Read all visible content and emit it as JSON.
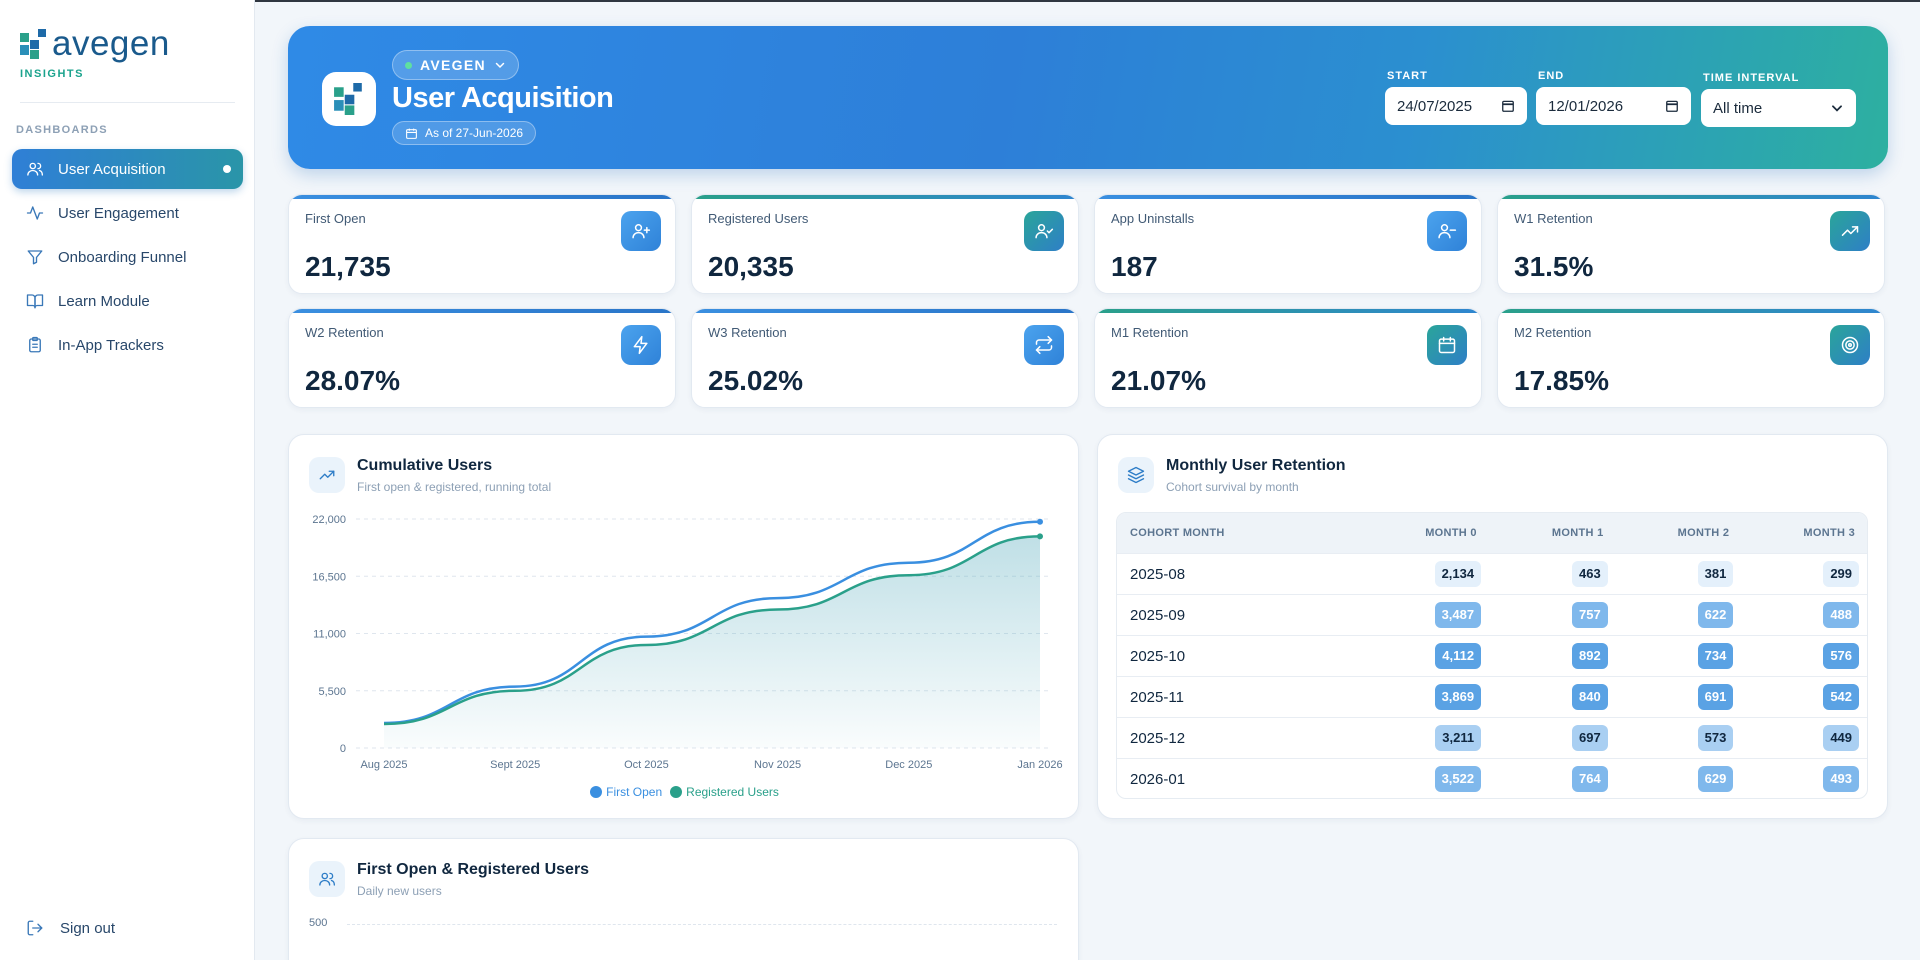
{
  "brand": {
    "name": "avegen",
    "sub": "INSIGHTS"
  },
  "sidebar": {
    "section": "DASHBOARDS",
    "items": [
      {
        "label": "User Acquisition",
        "icon": "users-icon",
        "active": true
      },
      {
        "label": "User Engagement",
        "icon": "activity-icon",
        "active": false
      },
      {
        "label": "Onboarding Funnel",
        "icon": "funnel-icon",
        "active": false
      },
      {
        "label": "Learn Module",
        "icon": "book-icon",
        "active": false
      },
      {
        "label": "In-App Trackers",
        "icon": "clipboard-icon",
        "active": false
      }
    ],
    "signout": "Sign out"
  },
  "header": {
    "org": "AVEGEN",
    "title": "User Acquisition",
    "as_of": "As of 27-Jun-2026",
    "start_label": "START",
    "start_value": "24/07/2025",
    "end_label": "END",
    "end_value": "12/01/2026",
    "interval_label": "TIME INTERVAL",
    "interval_value": "All time"
  },
  "kpis": [
    {
      "label": "First Open",
      "value": "21,735",
      "icon": "user-plus-icon",
      "color": "#3a8fe0"
    },
    {
      "label": "Registered Users",
      "value": "20,335",
      "icon": "user-check-icon",
      "color": "#2a95a8"
    },
    {
      "label": "App Uninstalls",
      "value": "187",
      "icon": "user-minus-icon",
      "color": "#3a8fe0"
    },
    {
      "label": "W1 Retention",
      "value": "31.5%",
      "icon": "trending-up-icon",
      "color": "#2a95a8"
    },
    {
      "label": "W2 Retention",
      "value": "28.07%",
      "icon": "zap-icon",
      "color": "#3a8fe0"
    },
    {
      "label": "W3 Retention",
      "value": "25.02%",
      "icon": "repeat-icon",
      "color": "#3a8fe0"
    },
    {
      "label": "M1 Retention",
      "value": "21.07%",
      "icon": "calendar-icon",
      "color": "#2a95a8"
    },
    {
      "label": "M2 Retention",
      "value": "17.85%",
      "icon": "target-icon",
      "color": "#2a95a8"
    }
  ],
  "cumulative": {
    "title": "Cumulative Users",
    "subtitle": "First open & registered, running total"
  },
  "chart_data": {
    "type": "area",
    "categories": [
      "Aug 2025",
      "Sept 2025",
      "Oct 2025",
      "Nov 2025",
      "Dec 2025",
      "Jan 2026"
    ],
    "series": [
      {
        "name": "First Open",
        "values": [
          2400,
          5900,
          10700,
          14400,
          17800,
          21735
        ],
        "color": "#3a8fe0"
      },
      {
        "name": "Registered Users",
        "values": [
          2300,
          5500,
          9900,
          13300,
          16600,
          20335
        ],
        "color": "#2aa08a"
      }
    ],
    "y_ticks": [
      "22,000",
      "16,500",
      "11,000",
      "5,500",
      "0"
    ],
    "ylim": [
      0,
      22000
    ],
    "grid": true,
    "legend": "bottom"
  },
  "retention": {
    "title": "Monthly User Retention",
    "subtitle": "Cohort survival by month",
    "columns": [
      "COHORT MONTH",
      "MONTH 0",
      "MONTH 1",
      "MONTH 2",
      "MONTH 3"
    ],
    "rows": [
      {
        "cohort": "2025-08",
        "values": [
          "2,134",
          "463",
          "381",
          "299"
        ],
        "shade": 0
      },
      {
        "cohort": "2025-09",
        "values": [
          "3,487",
          "757",
          "622",
          "488"
        ],
        "shade": 2
      },
      {
        "cohort": "2025-10",
        "values": [
          "4,112",
          "892",
          "734",
          "576"
        ],
        "shade": 3
      },
      {
        "cohort": "2025-11",
        "values": [
          "3,869",
          "840",
          "691",
          "542"
        ],
        "shade": 3
      },
      {
        "cohort": "2025-12",
        "values": [
          "3,211",
          "697",
          "573",
          "449"
        ],
        "shade": 1
      },
      {
        "cohort": "2026-01",
        "values": [
          "3,522",
          "764",
          "629",
          "493"
        ],
        "shade": 2
      }
    ]
  },
  "daily": {
    "title": "First Open & Registered Users",
    "subtitle": "Daily new users",
    "top_tick": "500"
  }
}
